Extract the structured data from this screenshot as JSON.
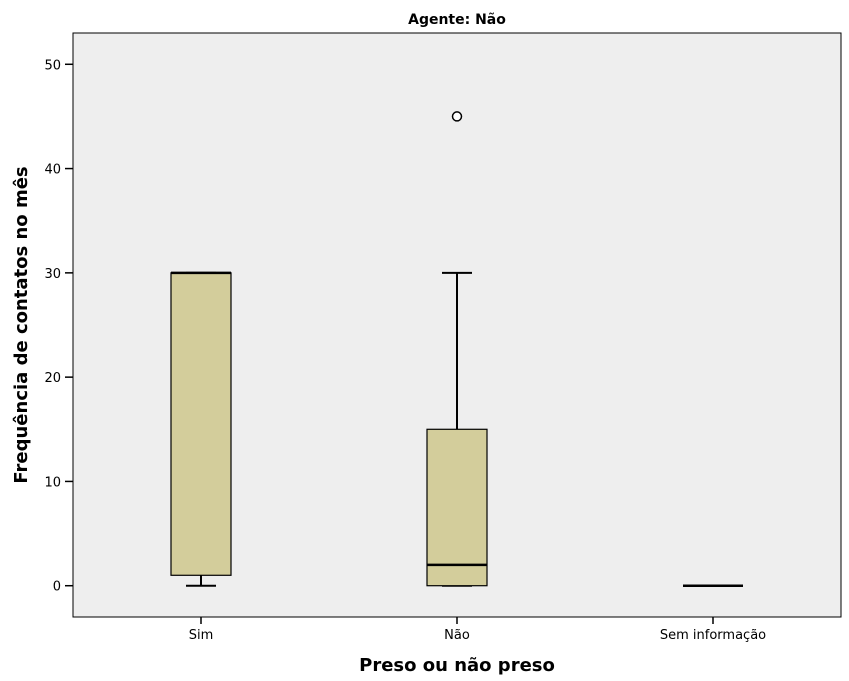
{
  "chart_data": {
    "type": "boxplot",
    "title": "Agente: Não",
    "xlabel": "Preso ou não preso",
    "ylabel": "Frequência de contatos no mês",
    "categories": [
      "Sim",
      "Não",
      "Sem informação"
    ],
    "ylim": [
      -3,
      53
    ],
    "yticks": [
      0,
      10,
      20,
      30,
      40,
      50
    ],
    "grid": false,
    "box_color": "#d3cd9b",
    "plot_background": "#eeeeee",
    "boxes": [
      {
        "category": "Sim",
        "whisker_low": 0,
        "q1": 1,
        "median": 30,
        "q3": 30,
        "whisker_high": 30,
        "outliers": []
      },
      {
        "category": "Não",
        "whisker_low": 0,
        "q1": 0,
        "median": 2,
        "q3": 15,
        "whisker_high": 30,
        "outliers": [
          45
        ]
      },
      {
        "category": "Sem informação",
        "whisker_low": 0,
        "q1": 0,
        "median": 0,
        "q3": 0,
        "whisker_high": 0,
        "outliers": []
      }
    ]
  }
}
